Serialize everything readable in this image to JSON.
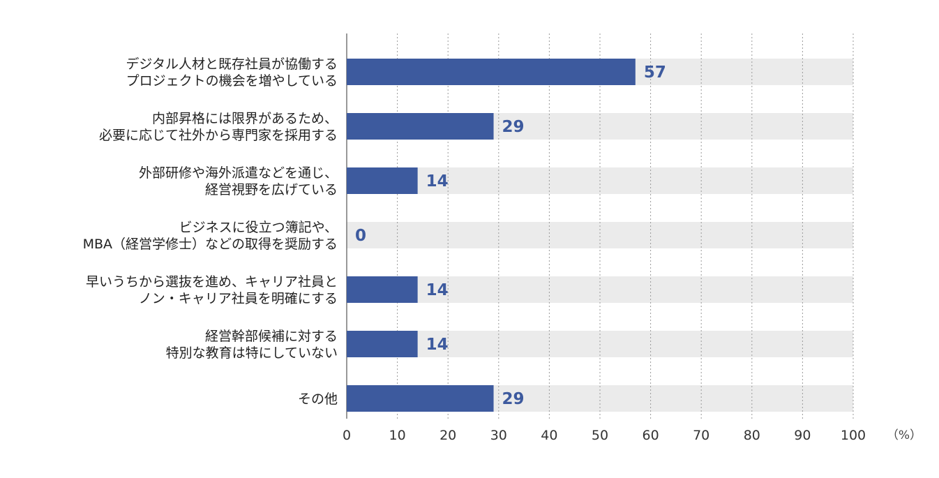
{
  "chart_data": {
    "type": "bar",
    "orientation": "horizontal",
    "categories": [
      [
        "デジタル人材と既存社員が協働する",
        "プロジェクトの機会を増やしている"
      ],
      [
        "内部昇格には限界があるため、",
        "必要に応じて社外から専門家を採用する"
      ],
      [
        "外部研修や海外派遣などを通じ、",
        "経営視野を広げている"
      ],
      [
        "ビジネスに役立つ簿記や、",
        "MBA（経営学修士）などの取得を奨励する"
      ],
      [
        "早いうちから選抜を進め、キャリア社員と",
        "ノン・キャリア社員を明確にする"
      ],
      [
        "経営幹部候補に対する",
        "特別な教育は特にしていない"
      ],
      [
        "その他"
      ]
    ],
    "values": [
      57,
      29,
      14,
      0,
      14,
      14,
      29
    ],
    "value_labels": [
      "57",
      "29",
      "14",
      "0",
      "14",
      "14",
      "29"
    ],
    "xlim": [
      0,
      100
    ],
    "x_ticks": [
      0,
      10,
      20,
      30,
      40,
      50,
      60,
      70,
      80,
      90,
      100
    ],
    "x_tick_labels": [
      "0",
      "10",
      "20",
      "30",
      "40",
      "50",
      "60",
      "70",
      "80",
      "90",
      "100"
    ],
    "unit_label": "（%）",
    "title": "",
    "xlabel": "",
    "ylabel": "",
    "grid": "vertical-dotted",
    "colors": {
      "bar": "#3d5a9e",
      "track": "#ebebeb",
      "value_text": "#3d5a9e",
      "grid": "#999999",
      "axis": "#555555"
    }
  }
}
